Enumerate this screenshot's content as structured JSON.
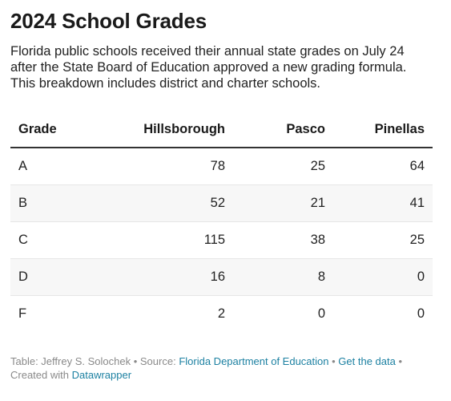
{
  "title": "2024 School Grades",
  "description": "Florida public schools received their annual state grades on July 24 after the State Board of Education approved a new grading formula. This breakdown includes district and charter schools.",
  "table": {
    "headers": [
      "Grade",
      "Hillsborough",
      "Pasco",
      "Pinellas"
    ],
    "rows": [
      [
        "A",
        "78",
        "25",
        "64"
      ],
      [
        "B",
        "52",
        "21",
        "41"
      ],
      [
        "C",
        "115",
        "38",
        "25"
      ],
      [
        "D",
        "16",
        "8",
        "0"
      ],
      [
        "F",
        "2",
        "0",
        "0"
      ]
    ]
  },
  "footer": {
    "credit": "Table: Jeffrey S. Solochek",
    "source_label": "Source:",
    "source_link": "Florida Department of Education",
    "data_link": "Get the data",
    "separator": "•",
    "created_label": "Created with",
    "created_link": "Datawrapper"
  },
  "colors": {
    "link": "#1d81a2",
    "stripe": "#f7f7f7",
    "header_rule": "#333333"
  }
}
